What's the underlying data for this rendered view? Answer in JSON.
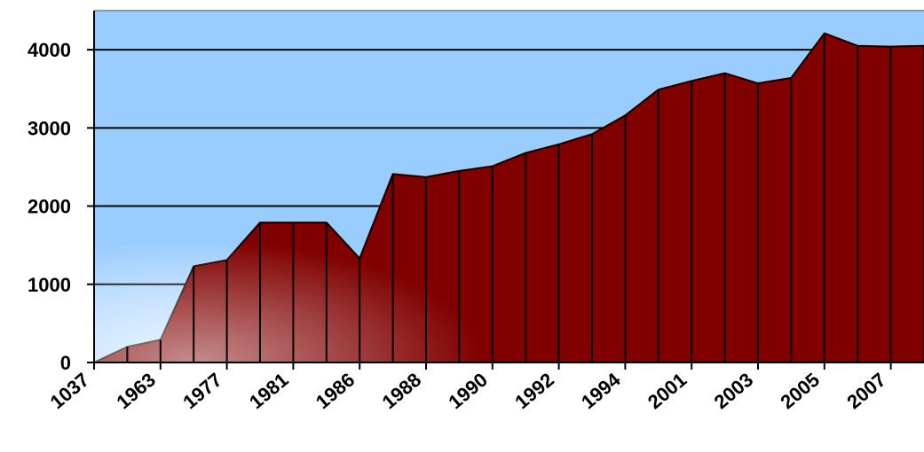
{
  "chart_data": {
    "type": "area",
    "categories": [
      "1037",
      null,
      "1963",
      null,
      "1977",
      null,
      "1981",
      null,
      "1986",
      null,
      "1988",
      null,
      "1990",
      null,
      "1992",
      null,
      "1994",
      null,
      "2001",
      null,
      "2003",
      null,
      "2005",
      null,
      "2007",
      null
    ],
    "values": [
      0,
      200,
      290,
      1230,
      1310,
      1790,
      1790,
      1790,
      1330,
      2410,
      2370,
      2450,
      2510,
      2680,
      2790,
      2920,
      3160,
      3490,
      3600,
      3700,
      3570,
      3640,
      4210,
      4050,
      4040,
      4050
    ],
    "color": "#800000",
    "background": "#99ccff",
    "ylim": [
      0,
      4500
    ],
    "yticks": [
      0,
      1000,
      2000,
      3000,
      4000
    ],
    "grid": true
  }
}
